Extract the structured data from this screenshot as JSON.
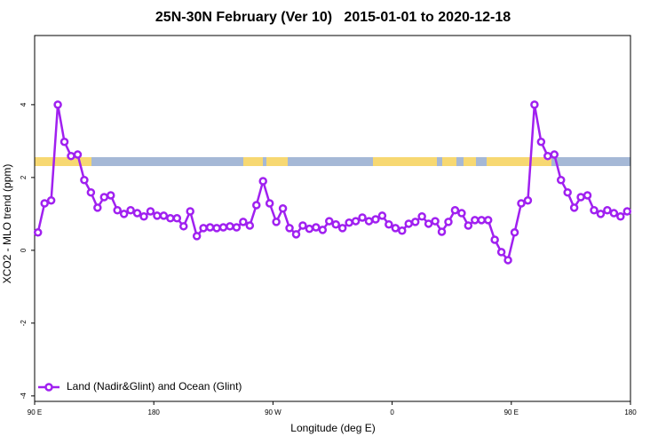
{
  "chart_data": {
    "type": "line",
    "title": "25N-30N February (Ver 10)   2015-01-01 to 2020-12-18",
    "x_label": "Longitude (deg E)",
    "y_label": "XCO2 - MLO trend (ppm)",
    "x": [
      92.5,
      97.5,
      102.5,
      107.5,
      112.5,
      117.5,
      122.5,
      127.5,
      132.5,
      137.5,
      142.5,
      147.5,
      152.5,
      157.5,
      162.5,
      167.5,
      172.5,
      177.5,
      182.5,
      187.5,
      192.5,
      197.5,
      202.5,
      207.5,
      212.5,
      217.5,
      222.5,
      227.5,
      232.5,
      237.5,
      242.5,
      247.5,
      252.5,
      257.5,
      262.5,
      267.5,
      272.5,
      277.5,
      282.5,
      287.5,
      292.5,
      297.5,
      302.5,
      307.5,
      312.5,
      317.5,
      322.5,
      327.5,
      332.5,
      337.5,
      342.5,
      347.5,
      352.5,
      357.5,
      362.5,
      367.5,
      372.5,
      377.5,
      382.5,
      387.5,
      392.5,
      397.5,
      402.5,
      407.5,
      412.5,
      417.5,
      422.5,
      427.5,
      432.5,
      437.5,
      442.5,
      447.5,
      452.5,
      457.5,
      462.5,
      467.5,
      472.5,
      477.5,
      482.5,
      487.5,
      492.5,
      497.5,
      502.5,
      507.5,
      512.5,
      517.5,
      522.5,
      527.5,
      532.5,
      537.5
    ],
    "series": [
      {
        "name": "Land (Nadir&Glint) and Ocean (Glint)",
        "color": "#a020f0",
        "values": [
          0.49,
          1.29,
          1.37,
          4.0,
          2.98,
          2.59,
          2.63,
          1.93,
          1.59,
          1.17,
          1.46,
          1.51,
          1.1,
          1.0,
          1.1,
          1.02,
          0.93,
          1.07,
          0.95,
          0.95,
          0.88,
          0.88,
          0.66,
          1.07,
          0.39,
          0.61,
          0.63,
          0.61,
          0.63,
          0.66,
          0.63,
          0.78,
          0.68,
          1.24,
          1.9,
          1.29,
          0.78,
          1.15,
          0.61,
          0.44,
          0.68,
          0.59,
          0.63,
          0.56,
          0.8,
          0.71,
          0.61,
          0.76,
          0.8,
          0.9,
          0.8,
          0.85,
          0.95,
          0.71,
          0.61,
          0.54,
          0.73,
          0.78,
          0.93,
          0.73,
          0.8,
          0.51,
          0.78,
          1.1,
          1.02,
          0.68,
          0.83,
          0.83,
          0.83,
          0.29,
          -0.05,
          -0.27,
          0.49,
          1.29,
          1.37,
          4.0,
          2.98,
          2.59,
          2.63,
          1.93,
          1.59,
          1.17,
          1.46,
          1.51,
          1.1,
          1.0,
          1.1,
          1.02,
          0.93,
          1.07
        ]
      }
    ],
    "xlim": [
      90,
      540
    ],
    "xticks": [
      {
        "value": 90,
        "label": "90 E"
      },
      180,
      {
        "value": 270,
        "label": "90 W"
      },
      {
        "value": 360,
        "label": "0"
      },
      {
        "value": 450,
        "label": "90 E"
      },
      {
        "value": 540,
        "label": "180"
      }
    ],
    "ylim": [
      -4.15,
      5.9
    ],
    "yticks": [
      -4,
      -2,
      0,
      2,
      4
    ],
    "legend": "bottom-left"
  }
}
